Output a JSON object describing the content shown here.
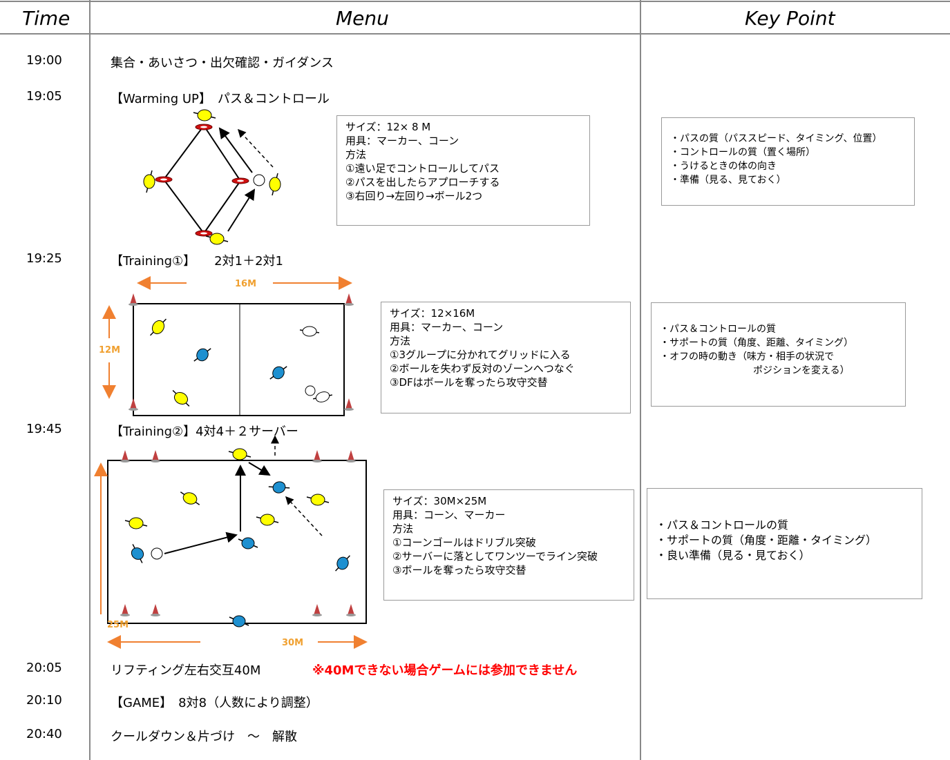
{
  "header": {
    "time": "Time",
    "menu": "Menu",
    "key_point": "Key Point"
  },
  "rows": [
    {
      "time": "19:00",
      "menu": "集合・あいさつ・出欠確認・ガイダンス"
    },
    {
      "time": "19:05",
      "menu": "【Warming UP】　パス＆コントロール",
      "info": [
        "サイズ：12× 8 M",
        "用具：マーカー、コーン",
        "方法",
        "①遠い足でコントロールしてパス",
        "②パスを出したらアプローチする",
        "③右回り→左回り→ボール2つ"
      ],
      "key_points": [
        "・パスの質（パススピード、タイミング、位置）",
        "・コントロールの質（置く場所）",
        "・うけるときの体の向き",
        "・準備（見る、見ておく）"
      ]
    },
    {
      "time": "19:25",
      "menu": "【Training①】　　2対1＋2対1",
      "width_label": "16M",
      "height_label": "12M",
      "info": [
        "サイズ：12×16M",
        "用具：マーカー、コーン",
        "方法",
        "①3グループに分かれてグリッドに入る",
        "②ボールを失わず反対のゾーンへつなぐ",
        "③DFはボールを奪ったら攻守交替"
      ],
      "key_points": [
        "・パス＆コントロールの質",
        "・サポートの質（角度、距離、タイミング）",
        "・オフの時の動き（味方・相手の状況で",
        "ポジションを変える）"
      ]
    },
    {
      "time": "19:45",
      "menu": "【Training②】4対4＋２サーバー",
      "height_label": "25M",
      "width_label": "30M",
      "info": [
        "サイズ：30M×25M",
        "用具：コーン、マーカー",
        "方法",
        "①コーンゴールはドリブル突破",
        "②サーバーに落としてワンツーでライン突破",
        "③ボールを奪ったら攻守交替"
      ],
      "key_points": [
        "・パス＆コントロールの質",
        "・サポートの質（角度・距離・タイミング）",
        "・良い準備（見る・見ておく）"
      ]
    },
    {
      "time": "20:05",
      "menu": "リフティング左右交互40M",
      "note": "※40Mできない場合ゲームには参加できません"
    },
    {
      "time": "20:10",
      "menu": "【GAME】　8対8（人数により調整）"
    },
    {
      "time": "20:40",
      "menu": "クールダウン＆片づけ　～　解散"
    }
  ]
}
